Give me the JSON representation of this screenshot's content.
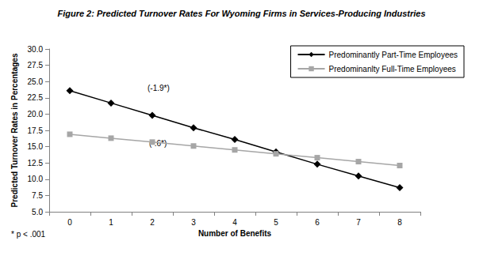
{
  "chart_data": {
    "type": "line",
    "title": "Figure 2: Predicted Turnover Rates For Wyoming Firms in Services-Producing Industries",
    "x_label": "Number of Benefits",
    "y_label": "Predicted Turnover Rates in Percentages",
    "categories": [
      "0",
      "1",
      "2",
      "3",
      "4",
      "5",
      "6",
      "7",
      "8"
    ],
    "series": [
      {
        "name": "Predominantly Part-Time Employees",
        "color": "#000000",
        "marker": "diamond",
        "values": [
          23.6,
          21.7,
          19.8,
          17.9,
          16.1,
          14.2,
          12.3,
          10.5,
          8.7
        ]
      },
      {
        "name": "Predominanlty Full-Time Employees",
        "color": "#a6a6a6",
        "marker": "square",
        "values": [
          16.9,
          16.3,
          15.7,
          15.1,
          14.5,
          13.9,
          13.3,
          12.7,
          12.1
        ]
      }
    ],
    "ylim": [
      5,
      30
    ],
    "yticks": [
      {
        "value": 5,
        "label": "5.0"
      },
      7.5,
      {
        "value": 10,
        "label": "10.0"
      },
      12.5,
      {
        "value": 15,
        "label": "15.0"
      },
      17.5,
      {
        "value": 20,
        "label": "20.0"
      },
      22.5,
      {
        "value": 25,
        "label": "25.0"
      },
      27.5,
      {
        "value": 30,
        "label": "30.0"
      }
    ],
    "grid": false,
    "legend": "upper right",
    "annotations": [
      "(-1.9*)",
      "(-.6*)"
    ],
    "footnote": "* p < .001"
  }
}
